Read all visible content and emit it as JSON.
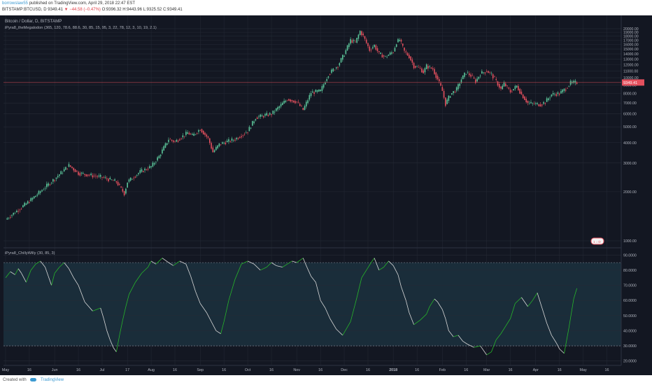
{
  "header": {
    "author": "borrowslaw55",
    "published_text": "published on TradingView.com, April 29, 2018 22:47 EST",
    "symbol": "BITSTAMP:BTCUSD, D",
    "last": "9349.41",
    "change": "▼ −44.58 (−0.47%)",
    "ohlc_o": "O:9396.32",
    "ohlc_h": "H:9443.96",
    "ohlc_l": "L:9325.52",
    "ohlc_c": "C:9349.41"
  },
  "main_pane": {
    "title": "Bitcoin / Dollar, D, BITSTAMP",
    "indicator": "iPyra8_theMegalodon (365, 120, 78.6, 88.6, 30, 85, 15, 95, 3, 22, 78, 12, 3, 10, 19, 2.1)",
    "price_tag": "9349.41",
    "mini_label": "1 ↓ D"
  },
  "lower_pane": {
    "title": "iPyra8_ChillyWilly (30, 85, 3)"
  },
  "footer": {
    "created_with": "Created with",
    "brand": "TradingView"
  },
  "colors": {
    "background": "#131722",
    "up": "#5bc59a",
    "down": "#e4505e",
    "price_line": "#e4505e",
    "osc_green": "#27b52a",
    "osc_white": "#d8d8d8",
    "osc_fill": "#1a2d3a",
    "grid": "#252a36",
    "axis_text": "#b0b4be"
  },
  "chart_data": [
    {
      "type": "candlestick",
      "title": "Bitcoin / Dollar, D, BITSTAMP",
      "y_scale": "log",
      "ylim": [
        1000,
        21000
      ],
      "y_ticks": [
        20000,
        19000,
        18000,
        17000,
        16000,
        15000,
        14000,
        13000,
        12000,
        11000,
        10000,
        9000,
        8000,
        7000,
        6000,
        5000,
        4000,
        3000,
        2000,
        1000
      ],
      "y_tick_labels": [
        "20000.00",
        "19000.00",
        "18000.00",
        "17000.00",
        "16000.00",
        "15000.00",
        "14000.00",
        "13000.00",
        "12000.00",
        "11000.00",
        "10000.00",
        "9000.00",
        "8000.00",
        "7000.00",
        "6000.00",
        "5000.00",
        "4000.00",
        "3000.00",
        "2000.00",
        "1000.00"
      ],
      "x_tick_labels": [
        "May",
        "16",
        "Jun",
        "16",
        "Jul",
        "17",
        "Aug",
        "16",
        "Sep",
        "16",
        "Oct",
        "16",
        "Nov",
        "16",
        "Dec",
        "16",
        "2018",
        "16",
        "Feb",
        "16",
        "Mar",
        "16",
        "Apr",
        "16",
        "May",
        "16"
      ],
      "x_tick_index": [
        0,
        15,
        31,
        46,
        61,
        77,
        92,
        107,
        123,
        138,
        153,
        168,
        184,
        199,
        214,
        229,
        245,
        260,
        276,
        291,
        304,
        319,
        335,
        350,
        365,
        380
      ],
      "last_price": 9349.41,
      "close_anchors": [
        [
          0,
          1350
        ],
        [
          15,
          1750
        ],
        [
          31,
          2400
        ],
        [
          40,
          2900
        ],
        [
          46,
          2600
        ],
        [
          61,
          2450
        ],
        [
          70,
          2300
        ],
        [
          75,
          1950
        ],
        [
          77,
          2300
        ],
        [
          85,
          2650
        ],
        [
          92,
          2850
        ],
        [
          97,
          3300
        ],
        [
          103,
          4200
        ],
        [
          107,
          4050
        ],
        [
          115,
          4600
        ],
        [
          118,
          4400
        ],
        [
          123,
          4850
        ],
        [
          128,
          4250
        ],
        [
          131,
          3500
        ],
        [
          135,
          3900
        ],
        [
          138,
          4000
        ],
        [
          145,
          4200
        ],
        [
          153,
          4700
        ],
        [
          158,
          5700
        ],
        [
          163,
          5850
        ],
        [
          168,
          6000
        ],
        [
          174,
          6800
        ],
        [
          178,
          7400
        ],
        [
          184,
          7100
        ],
        [
          188,
          6350
        ],
        [
          193,
          8100
        ],
        [
          199,
          8300
        ],
        [
          204,
          10500
        ],
        [
          210,
          11900
        ],
        [
          214,
          14000
        ],
        [
          218,
          17000
        ],
        [
          221,
          16400
        ],
        [
          224,
          19300
        ],
        [
          226,
          18000
        ],
        [
          230,
          14800
        ],
        [
          233,
          15800
        ],
        [
          236,
          14000
        ],
        [
          240,
          13400
        ],
        [
          245,
          14500
        ],
        [
          247,
          16500
        ],
        [
          249,
          17100
        ],
        [
          252,
          14500
        ],
        [
          255,
          13500
        ],
        [
          258,
          11800
        ],
        [
          262,
          11400
        ],
        [
          264,
          10800
        ],
        [
          266,
          11800
        ],
        [
          270,
          11300
        ],
        [
          273,
          9800
        ],
        [
          276,
          8300
        ],
        [
          278,
          6900
        ],
        [
          281,
          7900
        ],
        [
          285,
          8500
        ],
        [
          288,
          9800
        ],
        [
          291,
          10800
        ],
        [
          294,
          10300
        ],
        [
          297,
          9500
        ],
        [
          300,
          10600
        ],
        [
          304,
          11000
        ],
        [
          307,
          10500
        ],
        [
          310,
          9500
        ],
        [
          313,
          8500
        ],
        [
          315,
          9200
        ],
        [
          319,
          8200
        ],
        [
          323,
          8900
        ],
        [
          326,
          7900
        ],
        [
          330,
          7000
        ],
        [
          335,
          6900
        ],
        [
          338,
          6850
        ],
        [
          341,
          7100
        ],
        [
          345,
          7900
        ],
        [
          350,
          8000
        ],
        [
          354,
          8600
        ],
        [
          357,
          9300
        ],
        [
          361,
          9349
        ]
      ]
    },
    {
      "type": "line",
      "title": "iPyra8_ChillyWilly (30, 85, 3)",
      "ylim": [
        18,
        92
      ],
      "y_ticks": [
        90,
        80,
        70,
        60,
        50,
        40,
        30,
        20
      ],
      "y_tick_labels": [
        "90.0000",
        "80.0000",
        "70.0000",
        "60.0000",
        "50.0000",
        "40.0000",
        "30.0000",
        "20.0000"
      ],
      "levels": [
        85,
        30
      ],
      "x": [
        0,
        3,
        6,
        8,
        10,
        13,
        16,
        19,
        22,
        25,
        27,
        29,
        31,
        34,
        37,
        40,
        43,
        46,
        50,
        55,
        60,
        62,
        64,
        66,
        68,
        70,
        72,
        74,
        76,
        78,
        82,
        86,
        90,
        92,
        95,
        99,
        103,
        106,
        110,
        114,
        117,
        120,
        123,
        127,
        130,
        133,
        136,
        138,
        141,
        145,
        149,
        153,
        157,
        161,
        165,
        168,
        171,
        175,
        178,
        181,
        184,
        188,
        190,
        193,
        196,
        199,
        202,
        205,
        209,
        213,
        218,
        222,
        225,
        228,
        231,
        233,
        236,
        239,
        242,
        245,
        248,
        250,
        253,
        255,
        258,
        262,
        266,
        268,
        271,
        273,
        276,
        278,
        280,
        283,
        286,
        289,
        292,
        296,
        300,
        304,
        307,
        310,
        313,
        316,
        319,
        322,
        326,
        330,
        333,
        336,
        339,
        342,
        345,
        348,
        350,
        353,
        356,
        359,
        361
      ],
      "values": [
        75,
        79,
        77,
        81,
        78,
        72,
        80,
        84,
        86,
        82,
        76,
        70,
        78,
        82,
        85,
        81,
        75,
        70,
        59,
        53,
        55,
        48,
        40,
        34,
        29,
        26,
        37,
        47,
        56,
        64,
        72,
        78,
        82,
        86,
        84,
        88,
        85,
        83,
        86,
        84,
        76,
        66,
        58,
        52,
        46,
        40,
        38,
        46,
        60,
        74,
        84,
        86,
        84,
        80,
        82,
        85,
        83,
        82,
        84,
        86,
        85,
        88,
        83,
        76,
        72,
        60,
        55,
        48,
        41,
        37,
        46,
        62,
        75,
        80,
        85,
        88,
        80,
        82,
        86,
        83,
        77,
        69,
        60,
        52,
        44,
        47,
        51,
        56,
        61,
        59,
        54,
        48,
        40,
        36,
        37,
        33,
        31,
        29,
        30,
        24,
        26,
        34,
        38,
        43,
        48,
        58,
        62,
        56,
        60,
        65,
        55,
        45,
        37,
        32,
        28,
        25,
        42,
        61,
        68
      ]
    }
  ]
}
